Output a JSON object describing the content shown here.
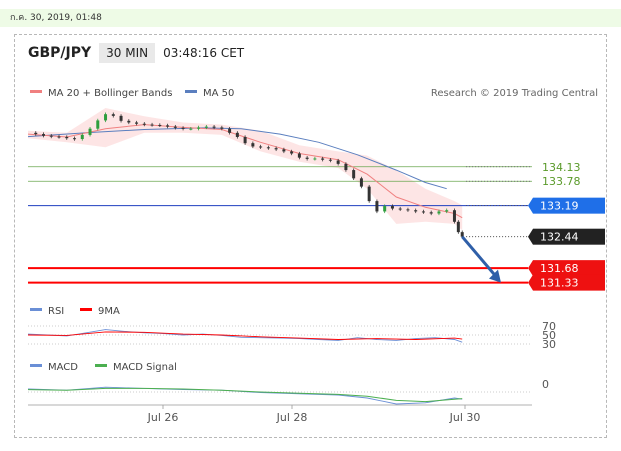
{
  "timestamp": "ก.ค. 30, 2019, 01:48",
  "header": {
    "pair": "GBP/JPY",
    "interval": "30 MIN",
    "time": "03:48:16 CET"
  },
  "credit": "Research © 2019 Trading Central",
  "colors": {
    "price_up": "#2e9e3e",
    "price_down": "#333333",
    "ma20": "#f08080",
    "bollinger_fill": "#fde0e0",
    "ma50": "#5b7fbf",
    "support": "#ff0000",
    "resistance_green": "#6aa84f",
    "pivot_blue": "#1f3fbf",
    "rsi": "#6a8fd6",
    "rsi_9ma": "#ff0000",
    "macd": "#6a8fd6",
    "macd_signal": "#4caf50",
    "arrow": "#2f5fa8"
  },
  "chart_data": [
    {
      "type": "candlestick",
      "title": "GBP/JPY",
      "legend": [
        {
          "name": "MA 20 + Bollinger Bands",
          "color": "#f08080"
        },
        {
          "name": "MA 50",
          "color": "#5b7fbf"
        }
      ],
      "x_ticks": [
        "Jul 26",
        "Jul 28",
        "Jul 30"
      ],
      "price_series": [
        [
          0,
          134.95
        ],
        [
          4,
          134.92
        ],
        [
          8,
          134.88
        ],
        [
          12,
          134.86
        ],
        [
          16,
          134.85
        ],
        [
          20,
          134.82
        ],
        [
          24,
          134.8
        ],
        [
          28,
          134.9
        ],
        [
          32,
          135.05
        ],
        [
          36,
          135.25
        ],
        [
          40,
          135.4
        ],
        [
          44,
          135.36
        ],
        [
          48,
          135.24
        ],
        [
          52,
          135.2
        ],
        [
          56,
          135.17
        ],
        [
          60,
          135.15
        ],
        [
          64,
          135.14
        ],
        [
          68,
          135.13
        ],
        [
          72,
          135.1
        ],
        [
          76,
          135.07
        ],
        [
          80,
          135.05
        ],
        [
          84,
          135.05
        ],
        [
          88,
          135.08
        ],
        [
          92,
          135.1
        ],
        [
          96,
          135.08
        ],
        [
          100,
          135.05
        ],
        [
          104,
          134.95
        ],
        [
          108,
          134.85
        ],
        [
          112,
          134.7
        ],
        [
          116,
          134.62
        ],
        [
          120,
          134.6
        ],
        [
          124,
          134.58
        ],
        [
          128,
          134.55
        ],
        [
          132,
          134.5
        ],
        [
          136,
          134.45
        ],
        [
          140,
          134.35
        ],
        [
          144,
          134.32
        ],
        [
          148,
          134.33
        ],
        [
          152,
          134.3
        ],
        [
          156,
          134.28
        ],
        [
          160,
          134.2
        ],
        [
          164,
          134.05
        ],
        [
          168,
          133.85
        ],
        [
          172,
          133.65
        ],
        [
          176,
          133.3
        ],
        [
          180,
          133.05
        ],
        [
          184,
          133.18
        ],
        [
          188,
          133.12
        ],
        [
          192,
          133.1
        ],
        [
          196,
          133.08
        ],
        [
          200,
          133.05
        ],
        [
          204,
          133.03
        ],
        [
          208,
          133.0
        ],
        [
          212,
          133.05
        ],
        [
          216,
          133.08
        ],
        [
          220,
          132.8
        ],
        [
          222,
          132.55
        ],
        [
          224,
          132.44
        ]
      ],
      "ma50_series": [
        [
          0,
          134.86
        ],
        [
          30,
          134.95
        ],
        [
          60,
          135.03
        ],
        [
          90,
          135.07
        ],
        [
          110,
          135.05
        ],
        [
          130,
          134.92
        ],
        [
          150,
          134.72
        ],
        [
          170,
          134.42
        ],
        [
          190,
          134.05
        ],
        [
          205,
          133.75
        ],
        [
          216,
          133.6
        ]
      ],
      "ma20_series": [
        [
          0,
          134.92
        ],
        [
          20,
          134.85
        ],
        [
          40,
          135.05
        ],
        [
          60,
          135.15
        ],
        [
          80,
          135.08
        ],
        [
          100,
          135.03
        ],
        [
          120,
          134.72
        ],
        [
          140,
          134.45
        ],
        [
          160,
          134.3
        ],
        [
          175,
          133.95
        ],
        [
          190,
          133.4
        ],
        [
          205,
          133.15
        ],
        [
          220,
          133.0
        ],
        [
          224,
          132.9
        ]
      ],
      "bollinger_upper": [
        [
          0,
          135.0
        ],
        [
          20,
          134.95
        ],
        [
          40,
          135.55
        ],
        [
          60,
          135.35
        ],
        [
          80,
          135.2
        ],
        [
          100,
          135.15
        ],
        [
          120,
          135.0
        ],
        [
          140,
          134.65
        ],
        [
          160,
          134.5
        ],
        [
          175,
          134.4
        ],
        [
          190,
          134.05
        ],
        [
          205,
          133.6
        ],
        [
          220,
          133.3
        ],
        [
          224,
          133.2
        ]
      ],
      "bollinger_lower": [
        [
          0,
          134.82
        ],
        [
          20,
          134.72
        ],
        [
          40,
          134.6
        ],
        [
          60,
          134.95
        ],
        [
          80,
          134.95
        ],
        [
          100,
          134.9
        ],
        [
          120,
          134.5
        ],
        [
          140,
          134.25
        ],
        [
          160,
          134.1
        ],
        [
          175,
          133.6
        ],
        [
          190,
          132.75
        ],
        [
          205,
          132.8
        ],
        [
          220,
          132.75
        ],
        [
          224,
          132.6
        ]
      ],
      "levels": [
        {
          "label": "134.13",
          "value": 134.13,
          "kind": "resistance"
        },
        {
          "label": "133.78",
          "value": 133.78,
          "kind": "resistance"
        },
        {
          "label": "133.19",
          "value": 133.19,
          "kind": "pivot"
        },
        {
          "label": "132.44",
          "value": 132.44,
          "kind": "last"
        },
        {
          "label": "131.68",
          "value": 131.68,
          "kind": "support"
        },
        {
          "label": "131.33",
          "value": 131.33,
          "kind": "support"
        }
      ],
      "forecast_arrow": {
        "from": [
          224,
          132.44
        ],
        "to": [
          244,
          131.33
        ]
      }
    },
    {
      "type": "line",
      "legend": [
        {
          "name": "RSI",
          "color": "#6a8fd6"
        },
        {
          "name": "9MA",
          "color": "#ff0000"
        }
      ],
      "y_ticks": [
        "70",
        "50",
        "30"
      ],
      "rsi_series": [
        [
          0,
          52
        ],
        [
          10,
          50
        ],
        [
          20,
          48
        ],
        [
          30,
          55
        ],
        [
          40,
          62
        ],
        [
          50,
          58
        ],
        [
          60,
          55
        ],
        [
          70,
          53
        ],
        [
          80,
          50
        ],
        [
          90,
          52
        ],
        [
          100,
          49
        ],
        [
          110,
          45
        ],
        [
          120,
          44
        ],
        [
          130,
          43
        ],
        [
          140,
          42
        ],
        [
          150,
          40
        ],
        [
          160,
          38
        ],
        [
          170,
          44
        ],
        [
          180,
          40
        ],
        [
          190,
          38
        ],
        [
          200,
          42
        ],
        [
          210,
          44
        ],
        [
          220,
          40
        ],
        [
          224,
          34
        ]
      ],
      "rsi_ma_series": [
        [
          0,
          50
        ],
        [
          20,
          49
        ],
        [
          40,
          57
        ],
        [
          60,
          56
        ],
        [
          80,
          52
        ],
        [
          100,
          50
        ],
        [
          120,
          46
        ],
        [
          140,
          43
        ],
        [
          160,
          40
        ],
        [
          180,
          42
        ],
        [
          200,
          40
        ],
        [
          220,
          43
        ],
        [
          224,
          41
        ]
      ]
    },
    {
      "type": "line",
      "legend": [
        {
          "name": "MACD",
          "color": "#6a8fd6"
        },
        {
          "name": "MACD Signal",
          "color": "#4caf50"
        }
      ],
      "y_ticks": [
        "0"
      ],
      "macd_series": [
        [
          0,
          0.05
        ],
        [
          20,
          0.03
        ],
        [
          40,
          0.08
        ],
        [
          60,
          0.06
        ],
        [
          80,
          0.04
        ],
        [
          100,
          0.03
        ],
        [
          120,
          -0.01
        ],
        [
          140,
          -0.03
        ],
        [
          160,
          -0.05
        ],
        [
          175,
          -0.1
        ],
        [
          190,
          -0.2
        ],
        [
          205,
          -0.18
        ],
        [
          220,
          -0.1
        ],
        [
          224,
          -0.12
        ]
      ],
      "signal_series": [
        [
          0,
          0.04
        ],
        [
          20,
          0.03
        ],
        [
          40,
          0.06
        ],
        [
          60,
          0.06
        ],
        [
          80,
          0.05
        ],
        [
          100,
          0.03
        ],
        [
          120,
          0.0
        ],
        [
          140,
          -0.02
        ],
        [
          160,
          -0.04
        ],
        [
          175,
          -0.07
        ],
        [
          190,
          -0.14
        ],
        [
          205,
          -0.16
        ],
        [
          220,
          -0.12
        ],
        [
          224,
          -0.11
        ]
      ]
    }
  ]
}
